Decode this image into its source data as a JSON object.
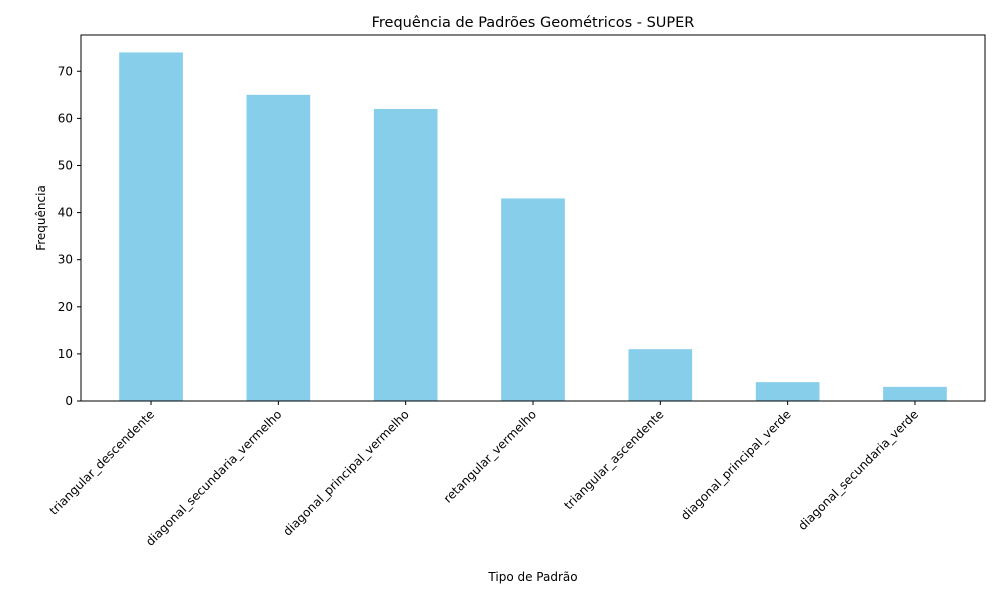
{
  "chart_data": {
    "type": "bar",
    "title": "Frequência de Padrões Geométricos - SUPER",
    "xlabel": "Tipo de Padrão",
    "ylabel": "Frequência",
    "categories": [
      "triangular_descendente",
      "diagonal_secundaria_vermelho",
      "diagonal_principal_vermelho",
      "retangular_vermelho",
      "triangular_ascendente",
      "diagonal_principal_verde",
      "diagonal_secundaria_verde"
    ],
    "values": [
      74,
      65,
      62,
      43,
      11,
      4,
      3
    ],
    "ylim": [
      0,
      77.7
    ],
    "yticks": [
      0,
      10,
      20,
      30,
      40,
      50,
      60,
      70
    ],
    "bar_color": "#87CEEB",
    "grid": false,
    "legend": "none"
  }
}
